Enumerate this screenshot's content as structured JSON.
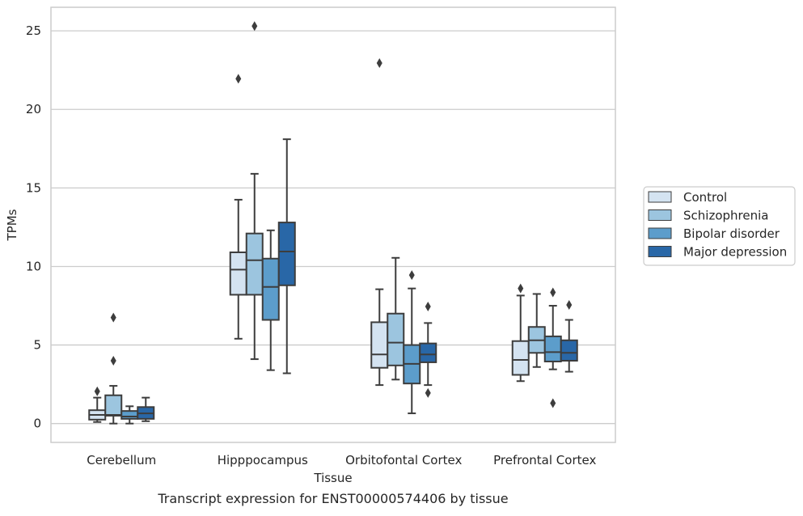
{
  "chart_data": {
    "type": "box",
    "caption": "Transcript expression for ENST00000574406 by tissue",
    "xlabel": "Tissue",
    "ylabel": "TPMs",
    "ylim": [
      -1.2,
      26.5
    ],
    "yticks": [
      0,
      5,
      10,
      15,
      20,
      25
    ],
    "grid": "horizontal",
    "legend_position": "right",
    "categories": [
      "Cerebellum",
      "Hipppocampus",
      "Orbitofontal Cortex",
      "Prefrontal Cortex"
    ],
    "series": [
      {
        "name": "Control",
        "color": "#d4e3f1",
        "boxes": [
          {
            "whislo": 0.1,
            "q1": 0.25,
            "med": 0.55,
            "q3": 0.85,
            "whishi": 1.65,
            "fliers": [
              2.05
            ]
          },
          {
            "whislo": 5.4,
            "q1": 8.2,
            "med": 9.8,
            "q3": 10.9,
            "whishi": 14.25,
            "fliers": [
              21.95
            ]
          },
          {
            "whislo": 2.45,
            "q1": 3.55,
            "med": 4.4,
            "q3": 6.45,
            "whishi": 8.55,
            "fliers": [
              22.95
            ]
          },
          {
            "whislo": 2.7,
            "q1": 3.1,
            "med": 4.05,
            "q3": 5.25,
            "whishi": 8.15,
            "fliers": [
              8.6
            ]
          }
        ]
      },
      {
        "name": "Schizophrenia",
        "color": "#9cc5df",
        "boxes": [
          {
            "whislo": 0.0,
            "q1": 0.5,
            "med": 0.55,
            "q3": 1.8,
            "whishi": 2.4,
            "fliers": [
              4.0,
              6.75
            ]
          },
          {
            "whislo": 4.1,
            "q1": 8.2,
            "med": 10.4,
            "q3": 12.1,
            "whishi": 15.9,
            "fliers": [
              25.3
            ]
          },
          {
            "whislo": 2.8,
            "q1": 3.7,
            "med": 5.15,
            "q3": 7.0,
            "whishi": 10.55,
            "fliers": []
          },
          {
            "whislo": 3.6,
            "q1": 4.5,
            "med": 5.3,
            "q3": 6.15,
            "whishi": 8.25,
            "fliers": []
          }
        ]
      },
      {
        "name": "Bipolar disorder",
        "color": "#5c9dcb",
        "boxes": [
          {
            "whislo": 0.0,
            "q1": 0.3,
            "med": 0.45,
            "q3": 0.8,
            "whishi": 1.1,
            "fliers": []
          },
          {
            "whislo": 3.4,
            "q1": 6.6,
            "med": 8.7,
            "q3": 10.5,
            "whishi": 12.3,
            "fliers": []
          },
          {
            "whislo": 0.65,
            "q1": 2.55,
            "med": 3.8,
            "q3": 5.0,
            "whishi": 8.6,
            "fliers": [
              9.45
            ]
          },
          {
            "whislo": 3.45,
            "q1": 3.95,
            "med": 4.55,
            "q3": 5.55,
            "whishi": 7.5,
            "fliers": [
              1.3,
              8.35
            ]
          }
        ]
      },
      {
        "name": "Major depression",
        "color": "#2967a7",
        "boxes": [
          {
            "whislo": 0.15,
            "q1": 0.3,
            "med": 0.65,
            "q3": 1.05,
            "whishi": 1.65,
            "fliers": []
          },
          {
            "whislo": 3.2,
            "q1": 8.8,
            "med": 10.95,
            "q3": 12.8,
            "whishi": 18.1,
            "fliers": []
          },
          {
            "whislo": 2.45,
            "q1": 3.9,
            "med": 4.4,
            "q3": 5.1,
            "whishi": 6.4,
            "fliers": [
              1.95,
              7.45
            ]
          },
          {
            "whislo": 3.3,
            "q1": 4.0,
            "med": 4.5,
            "q3": 5.3,
            "whishi": 6.6,
            "fliers": [
              7.55
            ]
          }
        ]
      }
    ]
  }
}
